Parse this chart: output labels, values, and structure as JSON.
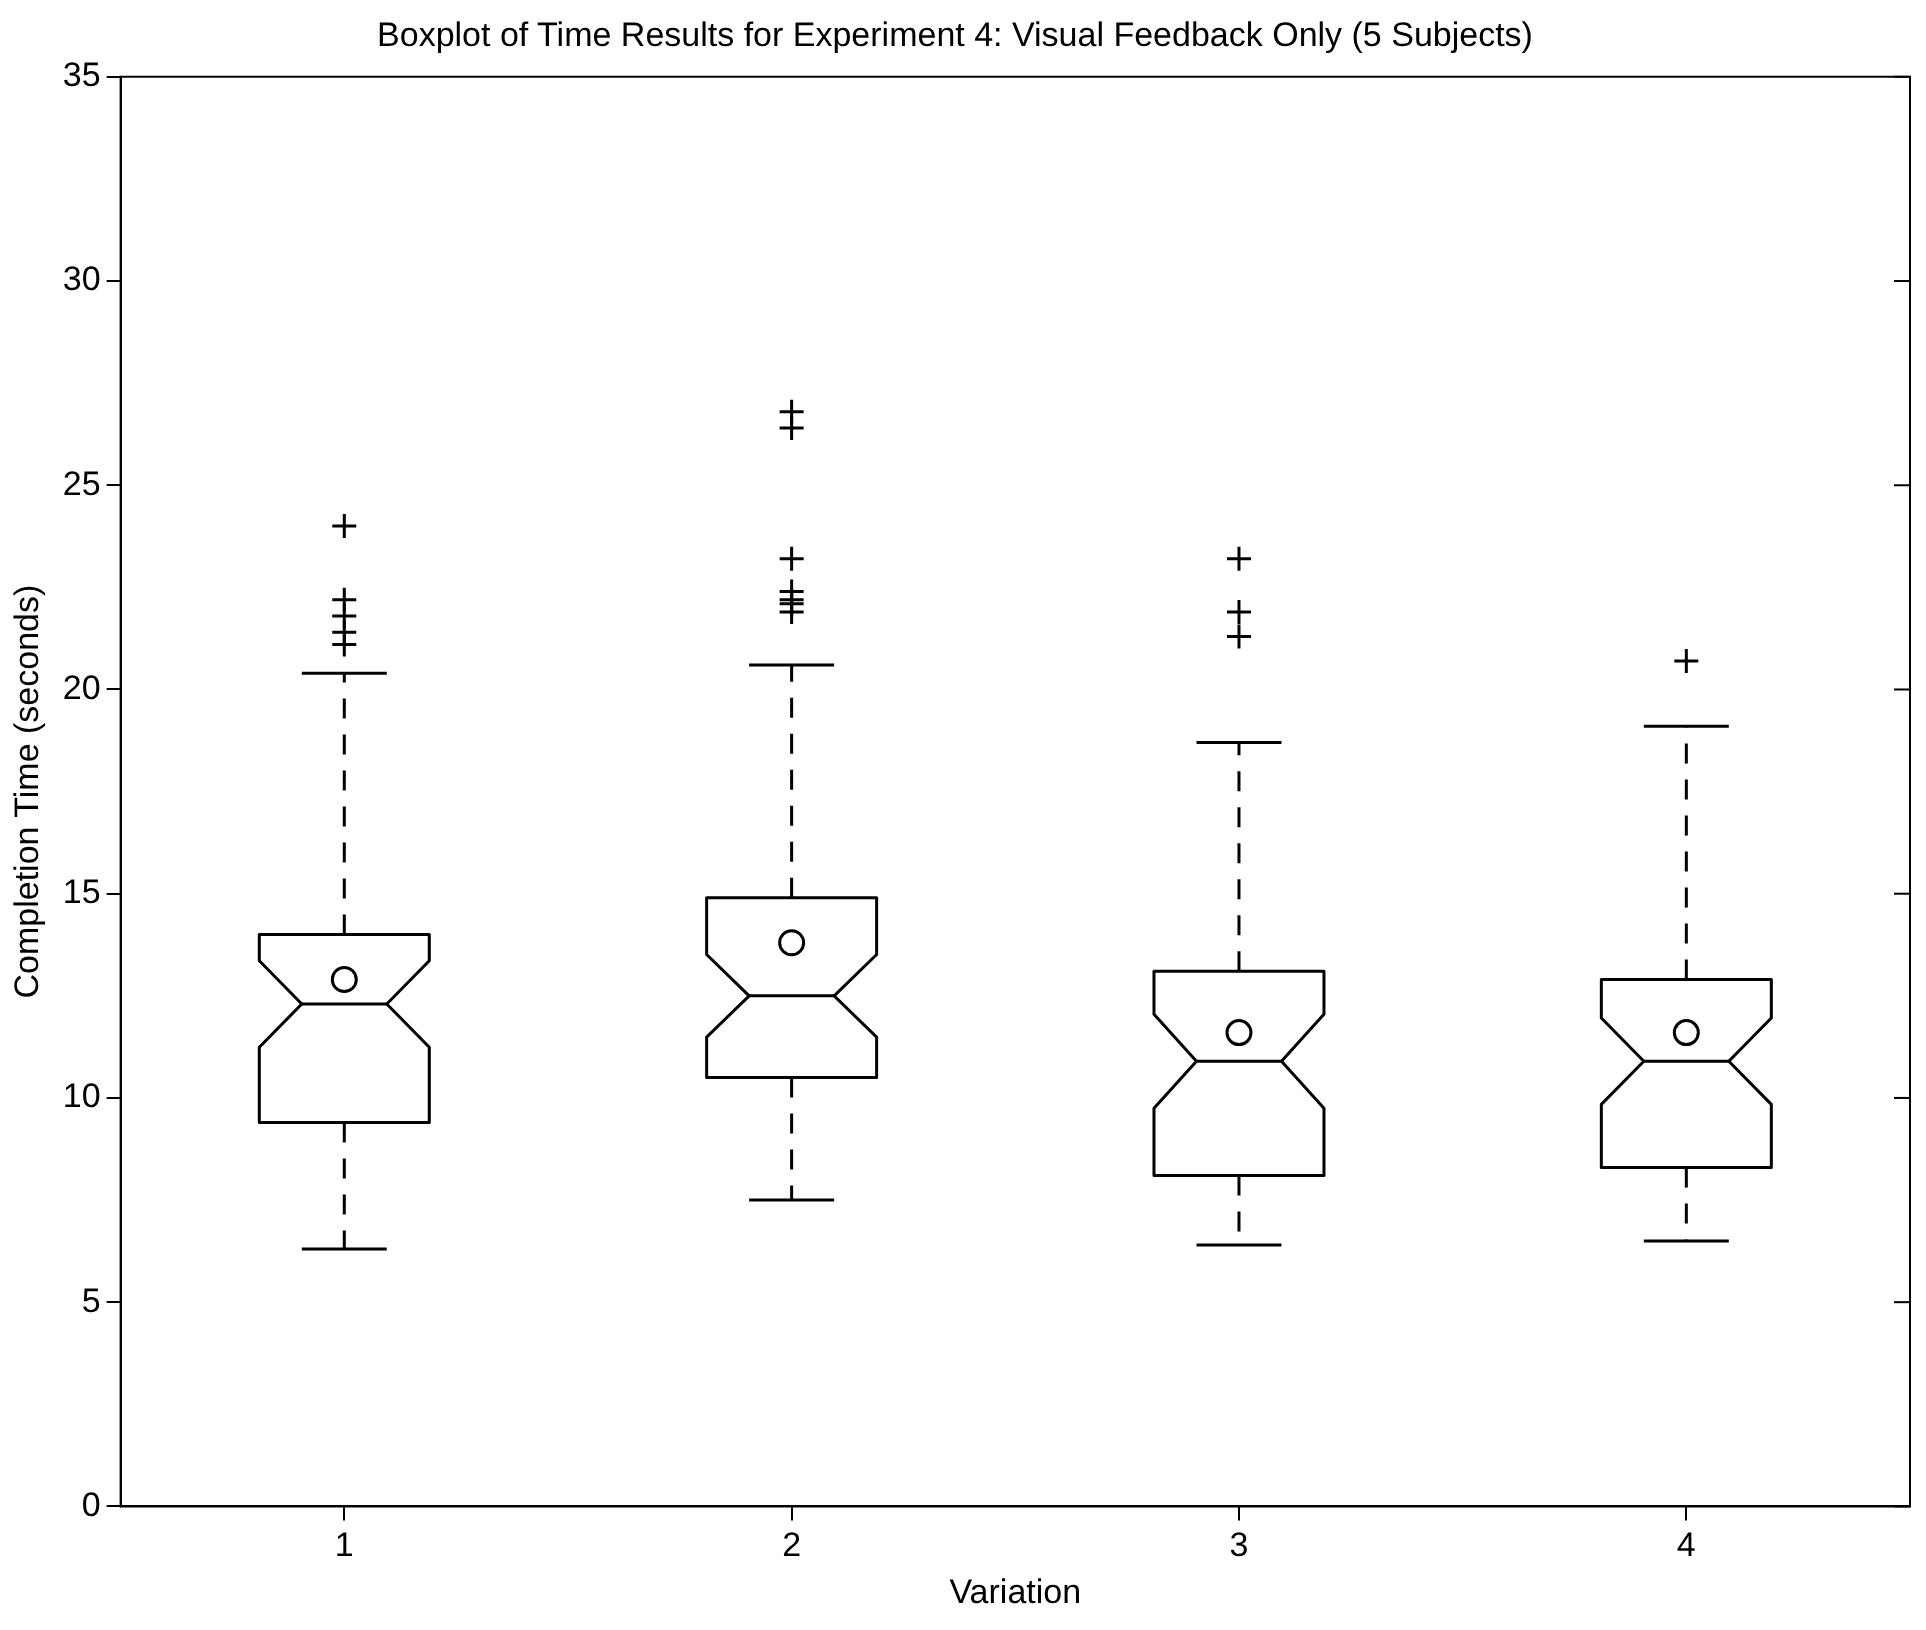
{
  "chart_data": {
    "type": "box",
    "title": "Boxplot of Time Results for Experiment 4: Visual Feedback Only (5 Subjects)",
    "xlabel": "Variation",
    "ylabel": "Completion Time (seconds)",
    "categories": [
      "1",
      "2",
      "3",
      "4"
    ],
    "ylim": [
      0,
      35
    ],
    "yticks": [
      0,
      5,
      10,
      15,
      20,
      25,
      30,
      35
    ],
    "grid": false,
    "legend": false,
    "boxes": [
      {
        "low": 6.3,
        "q1": 9.4,
        "median": 12.3,
        "q3": 14.0,
        "high": 20.4,
        "mean": 12.9,
        "outliers": [
          24.0,
          22.2,
          21.8,
          21.4,
          21.1
        ]
      },
      {
        "low": 7.5,
        "q1": 10.5,
        "median": 12.5,
        "q3": 14.9,
        "high": 20.6,
        "mean": 13.8,
        "outliers": [
          26.8,
          26.4,
          23.2,
          22.4,
          22.2,
          22.1,
          21.9
        ]
      },
      {
        "low": 6.4,
        "q1": 8.1,
        "median": 10.9,
        "q3": 13.1,
        "high": 18.7,
        "mean": 11.6,
        "outliers": [
          23.2,
          21.9,
          21.3
        ]
      },
      {
        "low": 6.5,
        "q1": 8.3,
        "median": 10.9,
        "q3": 12.9,
        "high": 19.1,
        "mean": 11.6,
        "outliers": [
          20.7
        ]
      }
    ]
  }
}
